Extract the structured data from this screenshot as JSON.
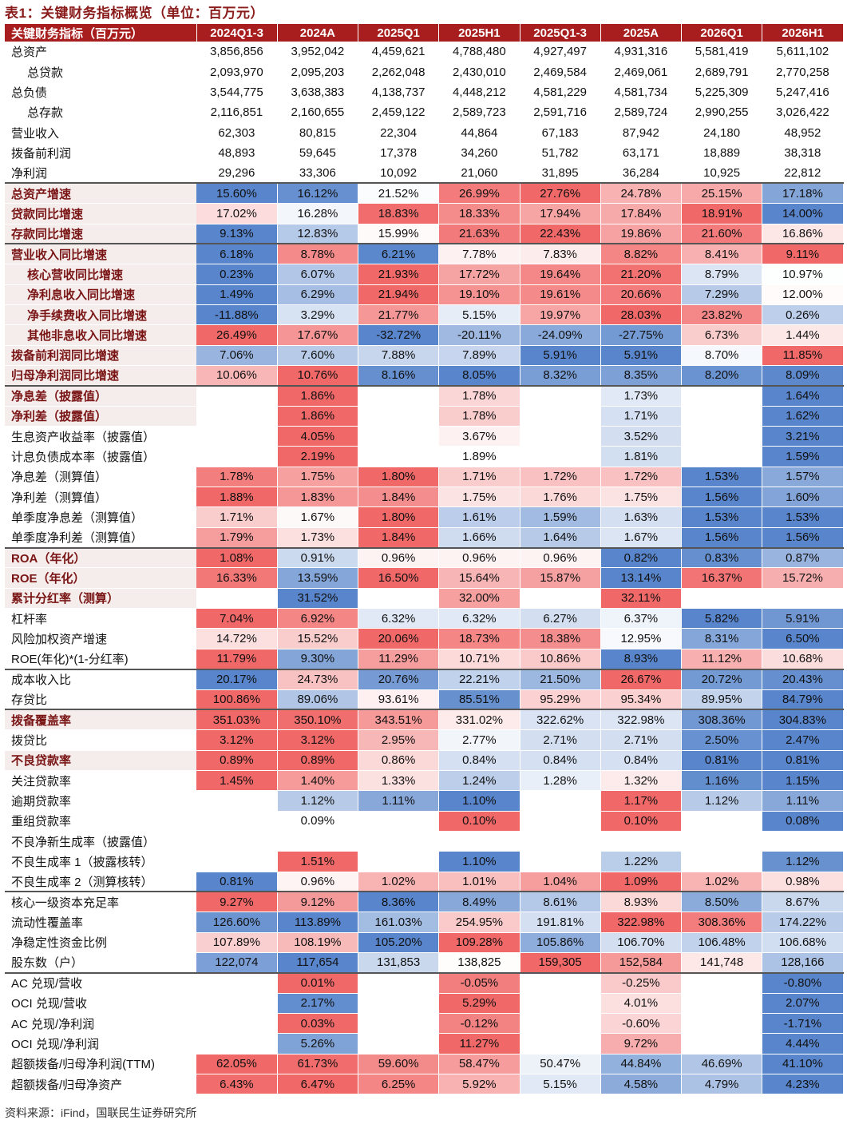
{
  "title": "表1：关键财务指标概览（单位：百万元）",
  "footer": "资料来源：iFind，国联民生证券研究所",
  "header": {
    "label": "关键财务指标（百万元）",
    "periods": [
      "2024Q1-3",
      "2024A",
      "2025Q1",
      "2025H1",
      "2025Q1-3",
      "2025A",
      "2026Q1",
      "2026H1"
    ]
  },
  "colors": {
    "header_bg": "#a81e1e",
    "title_text": "#8a1b1b",
    "heat_high": "#f06060",
    "heat_low": "#4f7fc8"
  },
  "rows": [
    {
      "label": "总资产",
      "indent": false,
      "bold": false,
      "group_start": false,
      "heat": false,
      "values": [
        "3,856,856",
        "3,952,042",
        "4,459,621",
        "4,788,480",
        "4,927,497",
        "4,931,316",
        "5,581,419",
        "5,611,102"
      ]
    },
    {
      "label": "总贷款",
      "indent": true,
      "bold": false,
      "group_start": false,
      "heat": false,
      "values": [
        "2,093,970",
        "2,095,203",
        "2,262,048",
        "2,430,010",
        "2,469,584",
        "2,469,061",
        "2,689,791",
        "2,770,258"
      ]
    },
    {
      "label": "总负债",
      "indent": false,
      "bold": false,
      "group_start": false,
      "heat": false,
      "values": [
        "3,544,775",
        "3,638,383",
        "4,138,737",
        "4,448,212",
        "4,581,229",
        "4,581,734",
        "5,225,309",
        "5,247,416"
      ]
    },
    {
      "label": "总存款",
      "indent": true,
      "bold": false,
      "group_start": false,
      "heat": false,
      "values": [
        "2,116,851",
        "2,160,655",
        "2,459,122",
        "2,589,723",
        "2,591,716",
        "2,589,724",
        "2,990,255",
        "3,026,422"
      ]
    },
    {
      "label": "营业收入",
      "indent": false,
      "bold": false,
      "group_start": false,
      "heat": false,
      "values": [
        "62,303",
        "80,815",
        "22,304",
        "44,864",
        "67,183",
        "87,942",
        "24,180",
        "48,952"
      ]
    },
    {
      "label": "拨备前利润",
      "indent": false,
      "bold": false,
      "group_start": false,
      "heat": false,
      "values": [
        "48,893",
        "59,645",
        "17,378",
        "34,260",
        "51,782",
        "63,171",
        "18,889",
        "38,318"
      ]
    },
    {
      "label": "净利润",
      "indent": false,
      "bold": false,
      "group_start": false,
      "heat": false,
      "values": [
        "29,296",
        "33,306",
        "10,092",
        "21,060",
        "31,895",
        "36,284",
        "10,925",
        "22,812"
      ]
    },
    {
      "label": "总资产增速",
      "indent": false,
      "bold": true,
      "group_start": true,
      "heat": true,
      "values": [
        "15.60%",
        "16.12%",
        "21.52%",
        "26.99%",
        "27.76%",
        "24.78%",
        "25.15%",
        "17.18%"
      ]
    },
    {
      "label": "贷款同比增速",
      "indent": false,
      "bold": true,
      "group_start": false,
      "heat": true,
      "values": [
        "17.02%",
        "16.28%",
        "18.83%",
        "18.33%",
        "17.94%",
        "17.84%",
        "18.91%",
        "14.00%"
      ]
    },
    {
      "label": "存款同比增速",
      "indent": false,
      "bold": true,
      "group_start": false,
      "heat": true,
      "values": [
        "9.13%",
        "12.83%",
        "15.99%",
        "21.63%",
        "22.43%",
        "19.86%",
        "21.60%",
        "16.86%"
      ]
    },
    {
      "label": "营业收入同比增速",
      "indent": false,
      "bold": true,
      "group_start": true,
      "heat": true,
      "values": [
        "6.18%",
        "8.78%",
        "6.21%",
        "7.78%",
        "7.83%",
        "8.82%",
        "8.41%",
        "9.11%"
      ]
    },
    {
      "label": "核心营收同比增速",
      "indent": true,
      "bold": true,
      "group_start": false,
      "heat": true,
      "values": [
        "0.23%",
        "6.07%",
        "21.93%",
        "17.72%",
        "19.64%",
        "21.20%",
        "8.79%",
        "10.97%"
      ]
    },
    {
      "label": "净利息收入同比增速",
      "indent": true,
      "bold": true,
      "group_start": false,
      "heat": true,
      "values": [
        "1.49%",
        "6.29%",
        "21.94%",
        "19.10%",
        "19.61%",
        "20.66%",
        "7.29%",
        "12.00%"
      ]
    },
    {
      "label": "净手续费收入同比增速",
      "indent": true,
      "bold": true,
      "group_start": false,
      "heat": true,
      "values": [
        "-11.88%",
        "3.29%",
        "21.77%",
        "5.15%",
        "19.97%",
        "28.03%",
        "23.82%",
        "0.26%"
      ]
    },
    {
      "label": "其他非息收入同比增速",
      "indent": true,
      "bold": true,
      "group_start": false,
      "heat": true,
      "values": [
        "26.49%",
        "17.67%",
        "-32.72%",
        "-20.11%",
        "-24.09%",
        "-27.75%",
        "6.73%",
        "1.44%"
      ]
    },
    {
      "label": "拨备前利润同比增速",
      "indent": false,
      "bold": true,
      "group_start": false,
      "heat": true,
      "values": [
        "7.06%",
        "7.60%",
        "7.88%",
        "7.89%",
        "5.91%",
        "5.91%",
        "8.70%",
        "11.85%"
      ]
    },
    {
      "label": "归母净利润同比增速",
      "indent": false,
      "bold": true,
      "group_start": false,
      "heat": true,
      "values": [
        "10.06%",
        "10.76%",
        "8.16%",
        "8.05%",
        "8.32%",
        "8.35%",
        "8.20%",
        "8.09%"
      ]
    },
    {
      "label": "净息差（披露值）",
      "indent": false,
      "bold": true,
      "group_start": true,
      "heat": true,
      "values": [
        "",
        "1.86%",
        "",
        "1.78%",
        "",
        "1.73%",
        "",
        "1.64%"
      ]
    },
    {
      "label": "净利差（披露值）",
      "indent": false,
      "bold": true,
      "group_start": false,
      "heat": true,
      "values": [
        "",
        "1.86%",
        "",
        "1.78%",
        "",
        "1.71%",
        "",
        "1.62%"
      ]
    },
    {
      "label": "生息资产收益率（披露值）",
      "indent": false,
      "bold": false,
      "group_start": false,
      "heat": true,
      "values": [
        "",
        "4.05%",
        "",
        "3.67%",
        "",
        "3.52%",
        "",
        "3.21%"
      ]
    },
    {
      "label": "计息负债成本率（披露值）",
      "indent": false,
      "bold": false,
      "group_start": false,
      "heat": true,
      "values": [
        "",
        "2.19%",
        "",
        "1.89%",
        "",
        "1.81%",
        "",
        "1.59%"
      ]
    },
    {
      "label": "净息差（测算值）",
      "indent": false,
      "bold": false,
      "group_start": false,
      "heat": true,
      "values": [
        "1.78%",
        "1.75%",
        "1.80%",
        "1.71%",
        "1.72%",
        "1.72%",
        "1.53%",
        "1.57%"
      ]
    },
    {
      "label": "净利差（测算值）",
      "indent": false,
      "bold": false,
      "group_start": false,
      "heat": true,
      "values": [
        "1.88%",
        "1.83%",
        "1.84%",
        "1.75%",
        "1.76%",
        "1.75%",
        "1.56%",
        "1.60%"
      ]
    },
    {
      "label": "单季度净息差（测算值）",
      "indent": false,
      "bold": false,
      "group_start": false,
      "heat": true,
      "values": [
        "1.71%",
        "1.67%",
        "1.80%",
        "1.61%",
        "1.59%",
        "1.63%",
        "1.53%",
        "1.53%"
      ]
    },
    {
      "label": "单季度净利差（测算值）",
      "indent": false,
      "bold": false,
      "group_start": false,
      "heat": true,
      "values": [
        "1.79%",
        "1.73%",
        "1.84%",
        "1.66%",
        "1.64%",
        "1.67%",
        "1.56%",
        "1.56%"
      ]
    },
    {
      "label": "ROA（年化）",
      "indent": false,
      "bold": true,
      "group_start": true,
      "heat": true,
      "values": [
        "1.08%",
        "0.91%",
        "0.96%",
        "0.96%",
        "0.96%",
        "0.82%",
        "0.83%",
        "0.87%"
      ]
    },
    {
      "label": "ROE（年化）",
      "indent": false,
      "bold": true,
      "group_start": false,
      "heat": true,
      "values": [
        "16.33%",
        "13.59%",
        "16.50%",
        "15.64%",
        "15.87%",
        "13.14%",
        "16.37%",
        "15.72%"
      ]
    },
    {
      "label": "累计分红率（测算）",
      "indent": false,
      "bold": true,
      "group_start": false,
      "heat": true,
      "values": [
        "",
        "31.52%",
        "",
        "32.00%",
        "",
        "32.11%",
        "",
        ""
      ]
    },
    {
      "label": "杠杆率",
      "indent": false,
      "bold": false,
      "group_start": false,
      "heat": true,
      "values": [
        "7.04%",
        "6.92%",
        "6.32%",
        "6.32%",
        "6.27%",
        "6.37%",
        "5.82%",
        "5.91%"
      ]
    },
    {
      "label": "风险加权资产增速",
      "indent": false,
      "bold": false,
      "group_start": false,
      "heat": true,
      "values": [
        "14.72%",
        "15.52%",
        "20.06%",
        "18.73%",
        "18.38%",
        "12.95%",
        "8.31%",
        "6.50%"
      ]
    },
    {
      "label": "ROE(年化)*(1-分红率)",
      "indent": false,
      "bold": false,
      "group_start": false,
      "heat": true,
      "values": [
        "11.79%",
        "9.30%",
        "11.29%",
        "10.71%",
        "10.86%",
        "8.93%",
        "11.12%",
        "10.68%"
      ]
    },
    {
      "label": "成本收入比",
      "indent": false,
      "bold": false,
      "group_start": true,
      "heat": true,
      "values": [
        "20.17%",
        "24.73%",
        "20.76%",
        "22.21%",
        "21.50%",
        "26.67%",
        "20.72%",
        "20.43%"
      ]
    },
    {
      "label": "存贷比",
      "indent": false,
      "bold": false,
      "group_start": false,
      "heat": true,
      "values": [
        "100.86%",
        "89.06%",
        "93.61%",
        "85.51%",
        "95.29%",
        "95.34%",
        "89.95%",
        "84.79%"
      ]
    },
    {
      "label": "拨备覆盖率",
      "indent": false,
      "bold": true,
      "group_start": true,
      "heat": true,
      "values": [
        "351.03%",
        "350.10%",
        "343.51%",
        "331.02%",
        "322.62%",
        "322.98%",
        "308.36%",
        "304.83%"
      ]
    },
    {
      "label": "拨贷比",
      "indent": false,
      "bold": false,
      "group_start": false,
      "heat": true,
      "values": [
        "3.12%",
        "3.12%",
        "2.95%",
        "2.77%",
        "2.71%",
        "2.71%",
        "2.50%",
        "2.47%"
      ]
    },
    {
      "label": "不良贷款率",
      "indent": false,
      "bold": true,
      "group_start": false,
      "heat": true,
      "values": [
        "0.89%",
        "0.89%",
        "0.86%",
        "0.84%",
        "0.84%",
        "0.84%",
        "0.81%",
        "0.81%"
      ]
    },
    {
      "label": "关注贷款率",
      "indent": false,
      "bold": false,
      "group_start": false,
      "heat": true,
      "values": [
        "1.45%",
        "1.40%",
        "1.33%",
        "1.24%",
        "1.28%",
        "1.32%",
        "1.16%",
        "1.15%"
      ]
    },
    {
      "label": "逾期贷款率",
      "indent": false,
      "bold": false,
      "group_start": false,
      "heat": true,
      "values": [
        "",
        "1.12%",
        "1.11%",
        "1.10%",
        "",
        "1.17%",
        "1.12%",
        "1.11%"
      ]
    },
    {
      "label": "重组贷款率",
      "indent": false,
      "bold": false,
      "group_start": false,
      "heat": true,
      "values": [
        "",
        "0.09%",
        "",
        "0.10%",
        "",
        "0.10%",
        "",
        "0.08%"
      ]
    },
    {
      "label": "不良净新生成率（披露值）",
      "indent": false,
      "bold": false,
      "group_start": false,
      "heat": true,
      "values": [
        "",
        "",
        "",
        "",
        "",
        "",
        "",
        ""
      ]
    },
    {
      "label": "不良生成率 1（披露核转）",
      "indent": false,
      "bold": false,
      "group_start": false,
      "heat": true,
      "values": [
        "",
        "1.51%",
        "",
        "1.10%",
        "",
        "1.22%",
        "",
        "1.12%"
      ]
    },
    {
      "label": "不良生成率 2（测算核转）",
      "indent": false,
      "bold": false,
      "group_start": false,
      "heat": true,
      "values": [
        "0.81%",
        "0.96%",
        "1.02%",
        "1.01%",
        "1.04%",
        "1.09%",
        "1.02%",
        "0.98%"
      ]
    },
    {
      "label": "核心一级资本充足率",
      "indent": false,
      "bold": false,
      "group_start": true,
      "heat": true,
      "values": [
        "9.27%",
        "9.12%",
        "8.36%",
        "8.49%",
        "8.61%",
        "8.93%",
        "8.50%",
        "8.67%"
      ]
    },
    {
      "label": "流动性覆盖率",
      "indent": false,
      "bold": false,
      "group_start": false,
      "heat": true,
      "values": [
        "126.60%",
        "113.89%",
        "161.03%",
        "254.95%",
        "191.81%",
        "322.98%",
        "308.36%",
        "174.22%"
      ]
    },
    {
      "label": "净稳定性资金比例",
      "indent": false,
      "bold": false,
      "group_start": false,
      "heat": true,
      "values": [
        "107.89%",
        "108.19%",
        "105.20%",
        "109.28%",
        "105.86%",
        "106.70%",
        "106.48%",
        "106.68%"
      ]
    },
    {
      "label": "股东数（户）",
      "indent": false,
      "bold": false,
      "group_start": false,
      "heat": true,
      "values": [
        "122,074",
        "117,654",
        "131,853",
        "138,825",
        "159,305",
        "152,584",
        "141,748",
        "128,166"
      ]
    },
    {
      "label": "AC 兑现/营收",
      "indent": false,
      "bold": false,
      "group_start": true,
      "heat": true,
      "values": [
        "",
        "0.01%",
        "",
        "-0.05%",
        "",
        "-0.25%",
        "",
        "-0.80%"
      ]
    },
    {
      "label": "OCI 兑现/营收",
      "indent": false,
      "bold": false,
      "group_start": false,
      "heat": true,
      "values": [
        "",
        "2.17%",
        "",
        "5.29%",
        "",
        "4.01%",
        "",
        "2.07%"
      ]
    },
    {
      "label": "AC 兑现/净利润",
      "indent": false,
      "bold": false,
      "group_start": false,
      "heat": true,
      "values": [
        "",
        "0.03%",
        "",
        "-0.12%",
        "",
        "-0.60%",
        "",
        "-1.71%"
      ]
    },
    {
      "label": "OCI 兑现/净利润",
      "indent": false,
      "bold": false,
      "group_start": false,
      "heat": true,
      "values": [
        "",
        "5.26%",
        "",
        "11.27%",
        "",
        "9.72%",
        "",
        "4.44%"
      ]
    },
    {
      "label": "超额拨备/归母净利润(TTM)",
      "indent": false,
      "bold": false,
      "group_start": false,
      "heat": true,
      "values": [
        "62.05%",
        "61.73%",
        "59.60%",
        "58.47%",
        "50.47%",
        "44.84%",
        "46.69%",
        "41.10%"
      ]
    },
    {
      "label": "超额拨备/归母净资产",
      "indent": false,
      "bold": false,
      "group_start": false,
      "heat": true,
      "values": [
        "6.43%",
        "6.47%",
        "6.25%",
        "5.92%",
        "5.15%",
        "4.58%",
        "4.79%",
        "4.23%"
      ]
    }
  ]
}
